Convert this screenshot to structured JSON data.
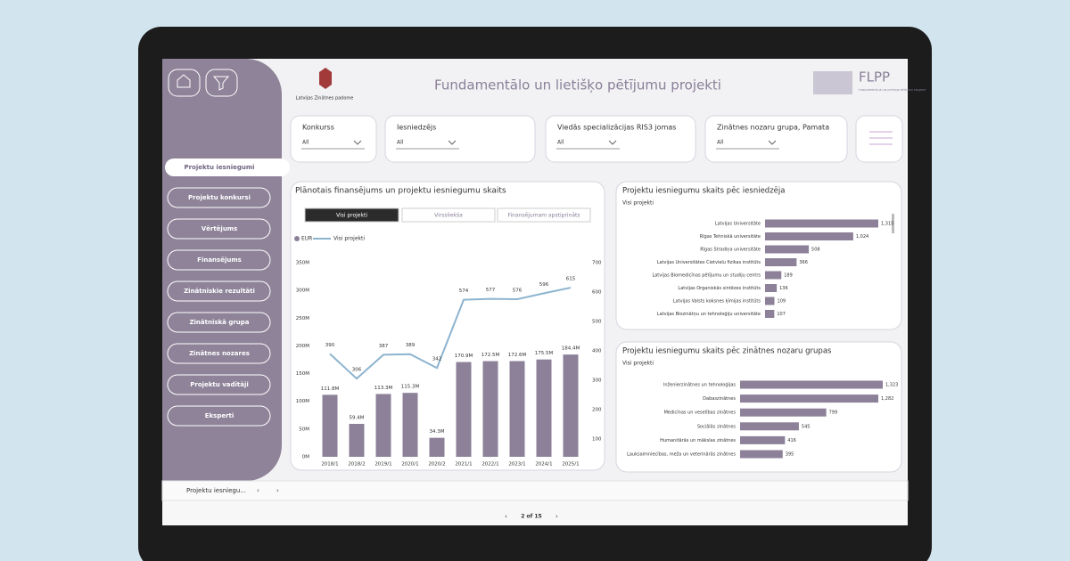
{
  "header": {
    "organization": "Latvijas Zinātnes padome",
    "title": "Fundamentālo un lietišķo pētījumu projekti",
    "logo": "FLPP",
    "logo_subtitle": "FUNDAMENTĀLIE UN LIETIŠĶIE PĒTĪJUMU PROJEKTI"
  },
  "navigation": {
    "active": "Projektu iesniegumi",
    "items": [
      "Projektu konkursi",
      "Vērtējums",
      "Finansējums",
      "Zinātniskie rezultāti",
      "Zinātniskā grupa",
      "Zinātnes nozares",
      "Projektu vadītāji",
      "Eksperti"
    ]
  },
  "filters": [
    {
      "label": "Konkurss",
      "value": "All"
    },
    {
      "label": "Iesniedzējs",
      "value": "All"
    },
    {
      "label": "Viedās specializācijas RIS3 jomas",
      "value": "All"
    },
    {
      "label": "Zinātnes nozaru grupa, Pamata",
      "value": "All"
    }
  ],
  "chart_data": [
    {
      "type": "combo",
      "title": "Plānotais finansējums un projektu iesniegumu skaits",
      "buttons": [
        "Visi projekti",
        "Virssliekša",
        "Finansējumam apstiprināts"
      ],
      "categories": [
        "2018/1",
        "2018/2",
        "2019/1",
        "2020/1",
        "2020/2",
        "2021/1",
        "2022/1",
        "2023/1",
        "2024/1",
        "2025/1"
      ],
      "series": [
        {
          "name": "EUR",
          "color": "#8c8199",
          "values": [
            111.8,
            59.4,
            113.3,
            115.3,
            34.3,
            170.9,
            172.5,
            172.6,
            175.5,
            184.4
          ],
          "value_labels": [
            "111.8M",
            "59.4M",
            "113.3M",
            "115.3M",
            "34.3M",
            "170.9M",
            "172.5M",
            "172.6M",
            "175.5M",
            "184.4M"
          ]
        },
        {
          "name": "Visi projekti",
          "color": "#8db4cf",
          "axis": "y2",
          "values": [
            390,
            306,
            387,
            389,
            342,
            574,
            577,
            576,
            596,
            615
          ]
        }
      ],
      "ylim": [
        0,
        350
      ],
      "yticks": [
        {
          "value": 0,
          "label": "0M"
        },
        {
          "value": 50,
          "label": "50M"
        },
        {
          "value": 100,
          "label": "100M"
        },
        {
          "value": 150,
          "label": "150M"
        },
        {
          "value": 200,
          "label": "200M"
        },
        {
          "value": 250,
          "label": "250M"
        },
        {
          "value": 300,
          "label": "300M"
        },
        {
          "value": 350,
          "label": "350M"
        }
      ],
      "y2lim": [
        40,
        700
      ],
      "y2ticks": [
        100,
        200,
        300,
        400,
        500,
        600,
        700
      ]
    },
    {
      "type": "hbar",
      "title": "Projektu iesniegumu skaits pēc iesniedzēja",
      "subtitle": "Visi projekti",
      "color": "#8c8199",
      "categories": [
        "Latvijas Universitāte",
        "Rīgas Tehniskā universitāte",
        "Rīgas Stradiņa universitāte",
        "Latvijas Universitātes Cietvielu fizikas institūts",
        "Latvijas Biomedicīnas pētījumu un studiju centrs",
        "Latvijas Organiskās sintēzes institūts",
        "Latvijas Valsts koksnes ķīmijas institūts",
        "Latvijas Biozinātņu un tehnoloģiju universitāte"
      ],
      "values": [
        1315,
        1024,
        508,
        366,
        189,
        136,
        109,
        107
      ],
      "value_labels": [
        "1,315",
        "1,024",
        "508",
        "366",
        "189",
        "136",
        "109",
        "107"
      ]
    },
    {
      "type": "hbar",
      "title": "Projektu iesniegumu skaits pēc zinātnes nozaru grupas",
      "subtitle": "Visi projekti",
      "color": "#8c8199",
      "categories": [
        "Inženierzinātnes un tehnoloģijas",
        "Dabaszinātnes",
        "Medicīnas un veselības zinātnes",
        "Sociālās zinātnes",
        "Humanitārās un mākslas zinātnes",
        "Lauksaimniecības, meža un veterinārās zinātnes"
      ],
      "values": [
        1323,
        1282,
        799,
        545,
        416,
        395
      ],
      "value_labels": [
        "1,323",
        "1,282",
        "799",
        "545",
        "416",
        "395"
      ]
    }
  ],
  "footer": {
    "tab": "Projektu iesniegu...",
    "pager": "2 of 15"
  }
}
